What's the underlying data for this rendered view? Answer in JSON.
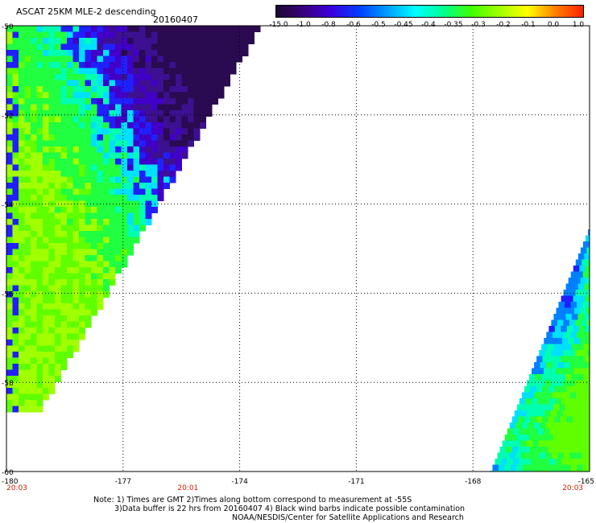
{
  "header": {
    "title": "ASCAT 25KM MLE-2 descending",
    "date": "20160407"
  },
  "colorbar": {
    "labels": [
      "-15.0",
      "-1.0",
      "-0.8",
      "-0.6",
      "-0.5",
      "-0.45",
      "-0.4",
      "-0.35",
      "-0.3",
      "-0.2",
      "-0.1",
      "0.0",
      "1.0"
    ],
    "colors": [
      "#1a0a30",
      "#3a0080",
      "#3a00e0",
      "#0040ff",
      "#00a0ff",
      "#00ffff",
      "#00ff90",
      "#40ff00",
      "#a0ff00",
      "#ffff00",
      "#ff8000",
      "#ff2000"
    ]
  },
  "map": {
    "lon_range": [
      -180,
      -165
    ],
    "lat_range": [
      -60,
      -50
    ],
    "lat_ticks": [
      "-50",
      "-52",
      "-54",
      "-56",
      "-58",
      "-60"
    ],
    "lon_ticks": [
      "-180",
      "-177",
      "-174",
      "-171",
      "-168",
      "-165"
    ],
    "time_labels": [
      {
        "text": "20:03",
        "lon": -180
      },
      {
        "text": "20:01",
        "lon": -175.6
      },
      {
        "text": "20:03",
        "lon": -165.7
      }
    ]
  },
  "notes": {
    "line1": "Note: 1) Times are GMT 2)Times along bottom correspond to measurement at -55S",
    "line2": "3)Data buffer is 22 hrs from 20160407 4) Black wind barbs indicate possible contamination",
    "line3": "NOAA/NESDIS/Center for Satellite Applications and Research"
  }
}
